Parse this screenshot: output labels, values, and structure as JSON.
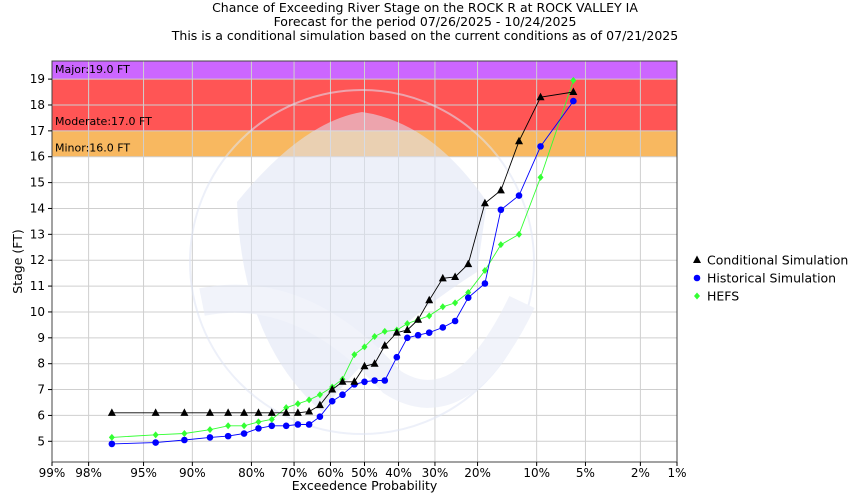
{
  "title": {
    "line1": "Chance of Exceeding River Stage on the ROCK R at ROCK VALLEY IA",
    "line2": "Forecast for the period 07/26/2025 - 10/24/2025",
    "line3": "This is a conditional simulation based on the current conditions as of 07/21/2025"
  },
  "colors": {
    "major": "#cc66ff",
    "moderate": "#ff5555",
    "minor": "#f8b860",
    "conditional": "#000000",
    "historical": "#0000ff",
    "hefs": "#33ff33"
  },
  "chart_data": {
    "type": "line",
    "xlabel": "Exceedence Probability",
    "ylabel": "Stage (FT)",
    "x_scale": "normal-probability",
    "x_reversed": true,
    "xlim": [
      99,
      1
    ],
    "ylim": [
      4.2,
      19.7
    ],
    "x_ticks": [
      99,
      98,
      95,
      90,
      80,
      70,
      60,
      50,
      40,
      30,
      20,
      10,
      5,
      2,
      1
    ],
    "x_tick_labels": [
      "99%",
      "98%",
      "95%",
      "90%",
      "80%",
      "70%",
      "60%",
      "50%",
      "40%",
      "30%",
      "20%",
      "10%",
      "5%",
      "2%",
      "1%"
    ],
    "y_ticks": [
      5,
      6,
      7,
      8,
      9,
      10,
      11,
      12,
      13,
      14,
      15,
      16,
      17,
      18,
      19
    ],
    "grid": true,
    "legend_position": "right",
    "flood_categories": [
      {
        "name": "Major",
        "label": "Major:19.0 FT",
        "stage": 19.0
      },
      {
        "name": "Moderate",
        "label": "Moderate:17.0 FT",
        "stage": 17.0
      },
      {
        "name": "Minor",
        "label": "Minor:16.0 FT",
        "stage": 16.0
      }
    ],
    "series": [
      {
        "name": "Conditional Simulation",
        "marker": "triangle",
        "points": [
          [
            97,
            6.1
          ],
          [
            94,
            6.1
          ],
          [
            91,
            6.1
          ],
          [
            87.5,
            6.1
          ],
          [
            84.5,
            6.1
          ],
          [
            81.5,
            6.1
          ],
          [
            78.5,
            6.1
          ],
          [
            75.5,
            6.1
          ],
          [
            72,
            6.1
          ],
          [
            69,
            6.1
          ],
          [
            66,
            6.15
          ],
          [
            63,
            6.4
          ],
          [
            59.5,
            7.0
          ],
          [
            56.5,
            7.3
          ],
          [
            53,
            7.3
          ],
          [
            50,
            7.9
          ],
          [
            47,
            8.0
          ],
          [
            44,
            8.7
          ],
          [
            40.5,
            9.2
          ],
          [
            37.5,
            9.3
          ],
          [
            34.5,
            9.7
          ],
          [
            31.5,
            10.45
          ],
          [
            28,
            11.3
          ],
          [
            25,
            11.35
          ],
          [
            22,
            11.85
          ],
          [
            18.5,
            14.2
          ],
          [
            15.5,
            14.7
          ],
          [
            12.5,
            16.6
          ],
          [
            9.5,
            18.3
          ],
          [
            6,
            18.5
          ]
        ]
      },
      {
        "name": "Historical Simulation",
        "marker": "circle",
        "points": [
          [
            97,
            4.9
          ],
          [
            94,
            4.95
          ],
          [
            91,
            5.05
          ],
          [
            87.5,
            5.15
          ],
          [
            84.5,
            5.2
          ],
          [
            81.5,
            5.3
          ],
          [
            78.5,
            5.5
          ],
          [
            75.5,
            5.6
          ],
          [
            72,
            5.6
          ],
          [
            69,
            5.65
          ],
          [
            66,
            5.65
          ],
          [
            63,
            5.95
          ],
          [
            59.5,
            6.55
          ],
          [
            56.5,
            6.8
          ],
          [
            53,
            7.2
          ],
          [
            50,
            7.3
          ],
          [
            47,
            7.35
          ],
          [
            44,
            7.35
          ],
          [
            40.5,
            8.25
          ],
          [
            37.5,
            9.0
          ],
          [
            34.5,
            9.1
          ],
          [
            31.5,
            9.2
          ],
          [
            28,
            9.4
          ],
          [
            25,
            9.65
          ],
          [
            22,
            10.55
          ],
          [
            18.5,
            11.1
          ],
          [
            15.5,
            13.95
          ],
          [
            12.5,
            14.5
          ],
          [
            9.5,
            16.4
          ],
          [
            6,
            18.15
          ]
        ]
      },
      {
        "name": "HEFS",
        "marker": "diamond",
        "points": [
          [
            97,
            5.15
          ],
          [
            94,
            5.25
          ],
          [
            91,
            5.3
          ],
          [
            87.5,
            5.45
          ],
          [
            84.5,
            5.6
          ],
          [
            81.5,
            5.6
          ],
          [
            78.5,
            5.75
          ],
          [
            75.5,
            5.85
          ],
          [
            72,
            6.3
          ],
          [
            69,
            6.45
          ],
          [
            66,
            6.6
          ],
          [
            63,
            6.8
          ],
          [
            59.5,
            7.1
          ],
          [
            56.5,
            7.4
          ],
          [
            53,
            8.35
          ],
          [
            50,
            8.65
          ],
          [
            47,
            9.05
          ],
          [
            44,
            9.25
          ],
          [
            40.5,
            9.3
          ],
          [
            37.5,
            9.55
          ],
          [
            34.5,
            9.7
          ],
          [
            31.5,
            9.85
          ],
          [
            28,
            10.2
          ],
          [
            25,
            10.35
          ],
          [
            22,
            10.75
          ],
          [
            18.5,
            11.6
          ],
          [
            15.5,
            12.6
          ],
          [
            12.5,
            13.0
          ],
          [
            9.5,
            15.2
          ],
          [
            6,
            18.95
          ]
        ]
      }
    ]
  }
}
